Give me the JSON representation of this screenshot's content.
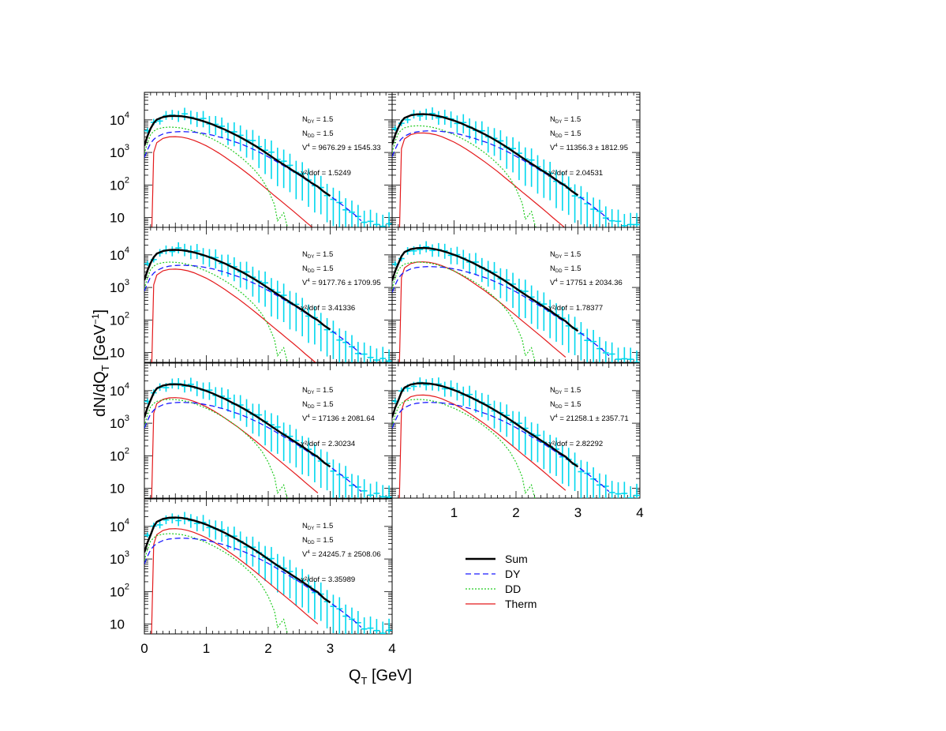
{
  "chart_data": {
    "type": "line",
    "panel_layout": "4 rows x 2 columns, 7 panels (bottom-right slot holds legend)",
    "xlabel": "Q_T [GeV]",
    "ylabel": "dN/dQ_T [GeV^-1]",
    "y_scale": "log",
    "xlim": [
      0,
      4
    ],
    "ylim": [
      5,
      70000
    ],
    "x_ticks": [
      "0",
      "1",
      "2",
      "3",
      "4"
    ],
    "y_ticks": [
      {
        "base": "10",
        "exp": ""
      },
      {
        "base": "10",
        "exp": "2"
      },
      {
        "base": "10",
        "exp": "3"
      },
      {
        "base": "10",
        "exp": "4"
      }
    ],
    "grid": false,
    "legend": {
      "placement": "bottom-right",
      "entries": [
        {
          "label": "Sum",
          "color": "#000000",
          "style": "solid-thick"
        },
        {
          "label": "DY",
          "color": "#1a1aff",
          "style": "dashed"
        },
        {
          "label": "DD",
          "color": "#22cc22",
          "style": "dotted"
        },
        {
          "label": "Therm",
          "color": "#e41a1c",
          "style": "solid"
        }
      ]
    },
    "data_color": "#00d8ee",
    "panels": [
      {
        "ndy": "N_DY = 1.5",
        "ndd": "N_DD = 1.5",
        "v4": "V^4 = 9676.29 ± 1545.33",
        "chi2": "χ²/dof = 1.5249",
        "scales": {
          "dy": 1.0,
          "dd": 1.0,
          "th": 1.0
        }
      },
      {
        "ndy": "N_DY = 1.5",
        "ndd": "N_DD = 1.5",
        "v4": "V^4 = 11356.3 ± 1812.95",
        "chi2": "χ²/dof = 2.04531",
        "scales": {
          "dy": 1.05,
          "dd": 1.1,
          "th": 1.3
        }
      },
      {
        "ndy": "N_DY = 1.5",
        "ndd": "N_DD = 1.5",
        "v4": "V^4 = 9177.76 ± 1709.95",
        "chi2": "χ²/dof = 3.41336",
        "scales": {
          "dy": 1.1,
          "dd": 1.0,
          "th": 1.2
        }
      },
      {
        "ndy": "N_DY = 1.5",
        "ndd": "N_DD = 1.5",
        "v4": "V^4 = 17751 ± 2034.36",
        "chi2": "χ²/dof = 1.78377",
        "scales": {
          "dy": 1.0,
          "dd": 1.0,
          "th": 2.0
        }
      },
      {
        "ndy": "N_DY = 1.5",
        "ndd": "N_DD = 1.5",
        "v4": "V^4 = 17136 ± 2081.64",
        "chi2": "χ²/dof = 2.30234",
        "scales": {
          "dy": 1.0,
          "dd": 0.9,
          "th": 2.0
        }
      },
      {
        "ndy": "N_DY = 1.5",
        "ndd": "N_DD = 1.5",
        "v4": "V^4 = 21258.1 ± 2357.71",
        "chi2": "χ²/dof = 2.82292",
        "scales": {
          "dy": 1.0,
          "dd": 0.9,
          "th": 2.4
        }
      },
      {
        "ndy": "N_DY = 1.5",
        "ndd": "N_DD = 1.5",
        "v4": "V^4 = 24245.7 ± 2508.06",
        "chi2": "χ²/dof = 3.35989",
        "scales": {
          "dy": 1.0,
          "dd": 1.0,
          "th": 2.8
        }
      }
    ],
    "series_templates": {
      "x": [
        0.0,
        0.05,
        0.1,
        0.15,
        0.2,
        0.3,
        0.4,
        0.5,
        0.6,
        0.7,
        0.8,
        0.9,
        1.0,
        1.1,
        1.2,
        1.3,
        1.4,
        1.5,
        1.6,
        1.7,
        1.8,
        1.9,
        2.0,
        2.1,
        2.2,
        2.3,
        2.4,
        2.5,
        2.6,
        2.7,
        2.8,
        2.9,
        3.0,
        3.1,
        3.2,
        3.3,
        3.4,
        3.5
      ],
      "dy": [
        700,
        1200,
        1900,
        2500,
        3000,
        3700,
        4100,
        4300,
        4400,
        4300,
        4200,
        4000,
        3700,
        3400,
        3000,
        2700,
        2300,
        2000,
        1700,
        1400,
        1150,
        920,
        730,
        570,
        440,
        340,
        260,
        200,
        150,
        110,
        85,
        62,
        46,
        33,
        24,
        17,
        12,
        8
      ],
      "dd": [
        900,
        2000,
        3500,
        4500,
        5200,
        5800,
        6000,
        5900,
        5600,
        5100,
        4500,
        3800,
        3200,
        2600,
        2050,
        1600,
        1200,
        870,
        610,
        410,
        260,
        150,
        70,
        25,
        8,
        14,
        6,
        3
      ],
      "dd_x": [
        0.0,
        0.05,
        0.1,
        0.15,
        0.2,
        0.3,
        0.4,
        0.5,
        0.6,
        0.7,
        0.8,
        0.9,
        1.0,
        1.1,
        1.2,
        1.3,
        1.4,
        1.5,
        1.6,
        1.7,
        1.8,
        1.9,
        2.0,
        2.1,
        2.15,
        2.25,
        2.3,
        2.35
      ],
      "th": [
        0.1,
        0.1,
        0.1,
        1000,
        2000,
        2700,
        3000,
        3050,
        2950,
        2700,
        2350,
        1950,
        1600,
        1250,
        960,
        720,
        530,
        390,
        280,
        200,
        140,
        98,
        68,
        47,
        33,
        23,
        16,
        11,
        7.5,
        5.2,
        3.6
      ]
    },
    "data_points": {
      "x": [
        0.05,
        0.15,
        0.25,
        0.35,
        0.45,
        0.55,
        0.65,
        0.75,
        0.85,
        0.95,
        1.05,
        1.15,
        1.25,
        1.35,
        1.45,
        1.55,
        1.65,
        1.75,
        1.85,
        1.95,
        2.05,
        2.15,
        2.25,
        2.35,
        2.45,
        2.55,
        2.65,
        2.75,
        2.85,
        2.95,
        3.05,
        3.15,
        3.25,
        3.35,
        3.45,
        3.55,
        3.65,
        3.75,
        3.85,
        3.95
      ],
      "y": [
        4200,
        7000,
        9500,
        11500,
        12500,
        13000,
        12500,
        11500,
        10200,
        9000,
        7600,
        6500,
        5400,
        4400,
        3600,
        2900,
        2300,
        1800,
        1400,
        1050,
        800,
        600,
        450,
        330,
        240,
        175,
        125,
        90,
        65,
        45,
        32,
        23,
        17,
        12,
        9,
        7,
        6,
        5.5,
        5,
        5
      ]
    }
  }
}
